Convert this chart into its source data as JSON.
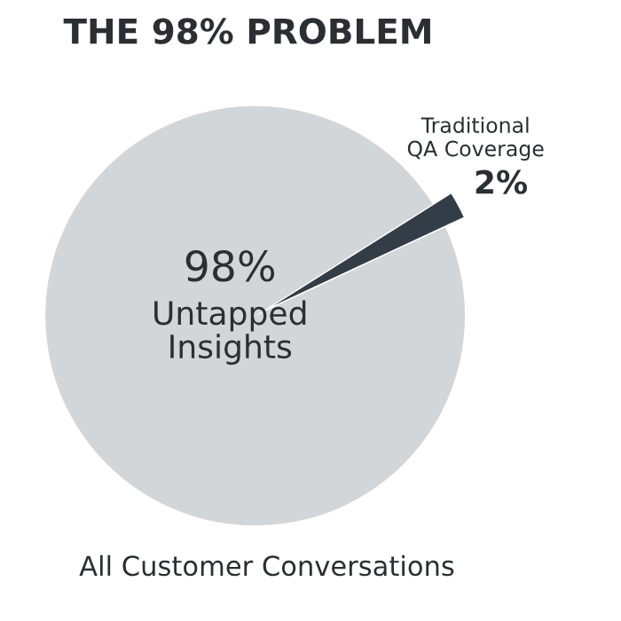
{
  "chart_data": {
    "type": "pie",
    "title": "THE 98% PROBLEM",
    "categories": [
      "Untapped Insights",
      "Traditional QA Coverage"
    ],
    "values": [
      98,
      2
    ],
    "colors": [
      "#d3d6d9",
      "#333d47"
    ],
    "value_labels": [
      "98%",
      "2%"
    ],
    "annotations": [
      "All Customer Conversations"
    ],
    "legend": false
  }
}
